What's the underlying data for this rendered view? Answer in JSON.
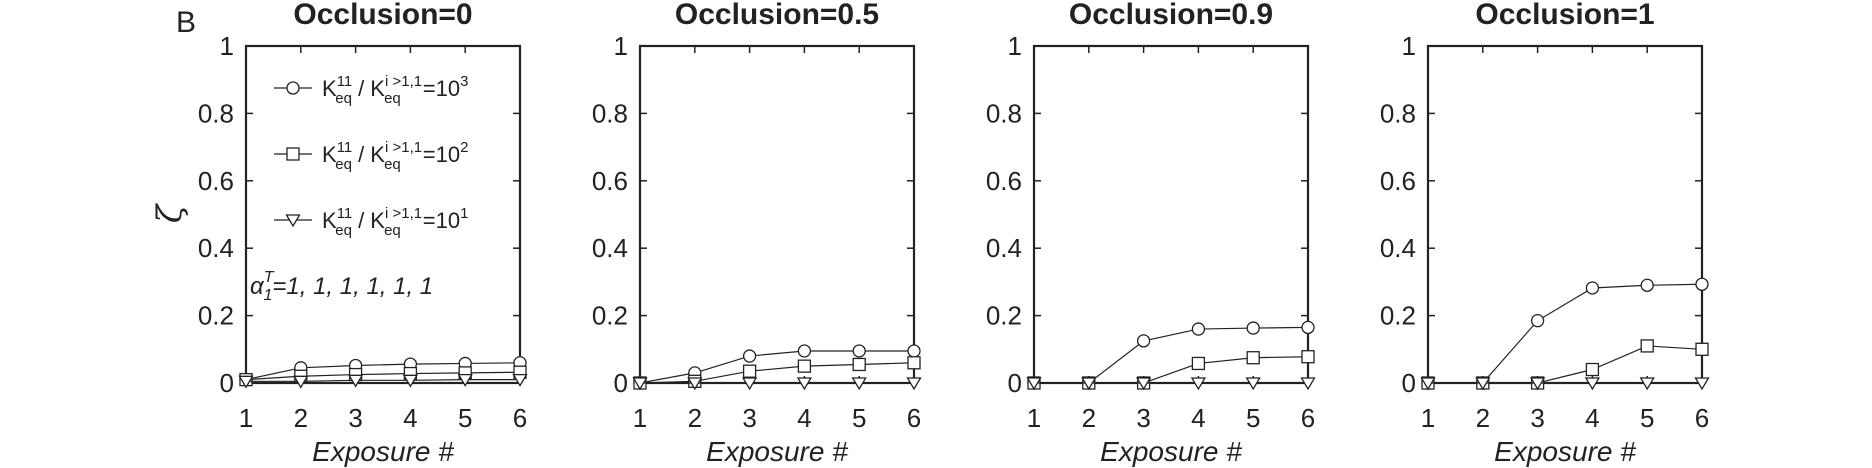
{
  "panel_label": "B",
  "chart_data": [
    {
      "type": "line",
      "title": "Occlusion=0",
      "xlabel": "Exposure #",
      "ylabel": "ζ",
      "x": [
        1,
        2,
        3,
        4,
        5,
        6
      ],
      "xlim": [
        1,
        6
      ],
      "ylim": [
        0,
        1
      ],
      "xticks": [
        "1",
        "2",
        "3",
        "4",
        "5",
        "6"
      ],
      "yticks": [
        "0",
        "0.2",
        "0.4",
        "0.6",
        "0.8",
        "1"
      ],
      "grid": false,
      "legend_position": "top-left",
      "annotation": {
        "alpha": "α",
        "sup": "T",
        "sub": "1",
        "text": "=1, 1, 1, 1, 1, 1"
      },
      "series": [
        {
          "marker": "circle",
          "legend": {
            "k": "K",
            "sub1": "eq",
            "sup1": "11",
            "sep": " / K",
            "sub2": "eq",
            "sup2": "i >1,1",
            "eq": "=10",
            "exp": "3"
          },
          "values": [
            0.01,
            0.045,
            0.052,
            0.056,
            0.058,
            0.06
          ]
        },
        {
          "marker": "square",
          "legend": {
            "k": "K",
            "sub1": "eq",
            "sup1": "11",
            "sep": " / K",
            "sub2": "eq",
            "sup2": "i >1,1",
            "eq": "=10",
            "exp": "2"
          },
          "values": [
            0.01,
            0.02,
            0.025,
            0.028,
            0.03,
            0.032
          ]
        },
        {
          "marker": "triangle",
          "legend": {
            "k": "K",
            "sub1": "eq",
            "sup1": "11",
            "sep": " / K",
            "sub2": "eq",
            "sup2": "i >1,1",
            "eq": "=10",
            "exp": "1"
          },
          "values": [
            0.005,
            0.005,
            0.008,
            0.008,
            0.01,
            0.01
          ]
        }
      ]
    },
    {
      "type": "line",
      "title": "Occlusion=0.5",
      "xlabel": "Exposure #",
      "ylabel": "",
      "x": [
        1,
        2,
        3,
        4,
        5,
        6
      ],
      "xlim": [
        1,
        6
      ],
      "ylim": [
        0,
        1
      ],
      "xticks": [
        "1",
        "2",
        "3",
        "4",
        "5",
        "6"
      ],
      "yticks": [
        "0",
        "0.2",
        "0.4",
        "0.6",
        "0.8",
        "1"
      ],
      "grid": false,
      "series": [
        {
          "marker": "circle",
          "values": [
            0.0,
            0.03,
            0.08,
            0.095,
            0.095,
            0.095
          ]
        },
        {
          "marker": "square",
          "values": [
            0.0,
            0.005,
            0.035,
            0.05,
            0.055,
            0.06
          ]
        },
        {
          "marker": "triangle",
          "values": [
            0.0,
            0.0,
            0.0,
            0.0,
            0.0,
            0.0
          ]
        }
      ]
    },
    {
      "type": "line",
      "title": "Occlusion=0.9",
      "xlabel": "Exposure #",
      "ylabel": "",
      "x": [
        1,
        2,
        3,
        4,
        5,
        6
      ],
      "xlim": [
        1,
        6
      ],
      "ylim": [
        0,
        1
      ],
      "xticks": [
        "1",
        "2",
        "3",
        "4",
        "5",
        "6"
      ],
      "yticks": [
        "0",
        "0.2",
        "0.4",
        "0.6",
        "0.8",
        "1"
      ],
      "grid": false,
      "series": [
        {
          "marker": "circle",
          "values": [
            0.0,
            0.0,
            0.125,
            0.16,
            0.163,
            0.165
          ]
        },
        {
          "marker": "square",
          "values": [
            0.0,
            0.0,
            0.0,
            0.058,
            0.075,
            0.078
          ]
        },
        {
          "marker": "triangle",
          "values": [
            0.0,
            0.0,
            0.0,
            0.0,
            0.0,
            0.0
          ]
        }
      ]
    },
    {
      "type": "line",
      "title": "Occlusion=1",
      "xlabel": "Exposure #",
      "ylabel": "",
      "x": [
        1,
        2,
        3,
        4,
        5,
        6
      ],
      "xlim": [
        1,
        6
      ],
      "ylim": [
        0,
        1
      ],
      "xticks": [
        "1",
        "2",
        "3",
        "4",
        "5",
        "6"
      ],
      "yticks": [
        "0",
        "0.2",
        "0.4",
        "0.6",
        "0.8",
        "1"
      ],
      "grid": false,
      "series": [
        {
          "marker": "circle",
          "values": [
            0.0,
            0.0,
            0.185,
            0.282,
            0.29,
            0.293
          ]
        },
        {
          "marker": "square",
          "values": [
            0.0,
            0.0,
            0.0,
            0.04,
            0.11,
            0.1
          ]
        },
        {
          "marker": "triangle",
          "values": [
            0.0,
            0.0,
            0.0,
            0.0,
            0.0,
            0.0
          ]
        }
      ]
    }
  ],
  "colors": {
    "line": "#222222",
    "marker_fill": "#ffffff",
    "background": "#ffffff"
  }
}
